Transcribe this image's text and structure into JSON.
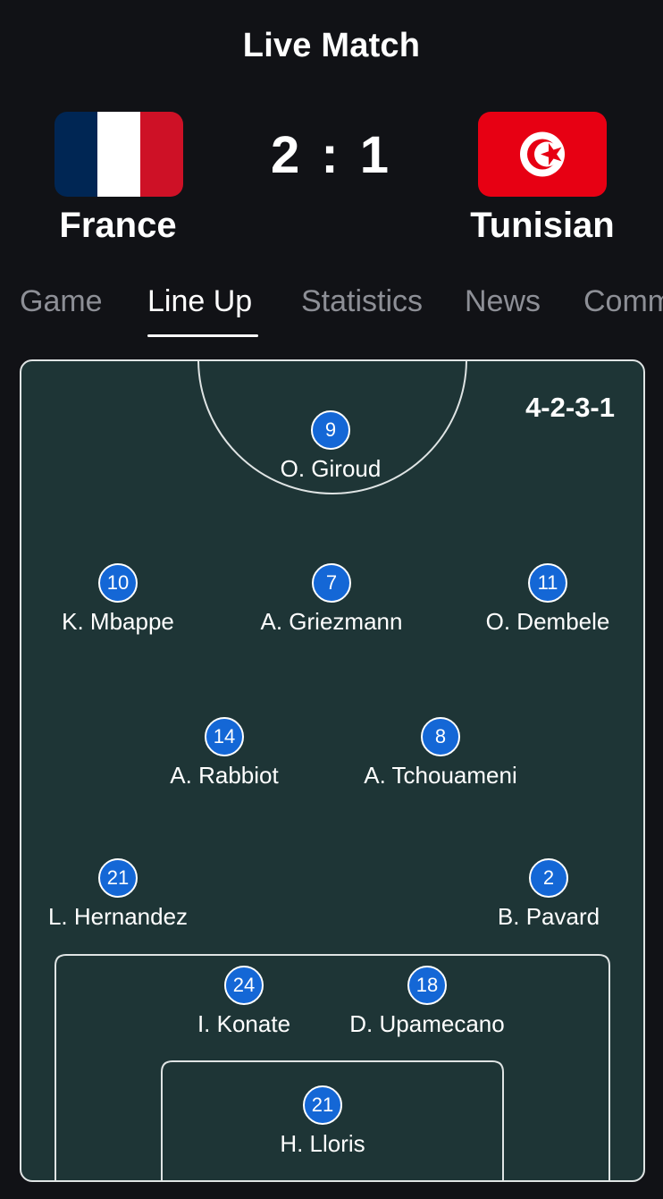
{
  "header": {
    "title": "Live Match"
  },
  "match": {
    "home": {
      "name": "France",
      "flag": "france-flag",
      "colors": [
        "#002654",
        "#ffffff",
        "#ce1126"
      ]
    },
    "away": {
      "name": "Tunisian",
      "flag": "tunisia-flag",
      "colors": [
        "#e70013",
        "#ffffff"
      ]
    },
    "score": "2 : 1"
  },
  "tabs": [
    {
      "label": "Game",
      "active": false
    },
    {
      "label": "Line Up",
      "active": true
    },
    {
      "label": "Statistics",
      "active": false
    },
    {
      "label": "News",
      "active": false
    },
    {
      "label": "Comm",
      "active": false
    }
  ],
  "lineup": {
    "formation": "4-2-3-1",
    "players": [
      {
        "number": "9",
        "name": "O. Giroud"
      },
      {
        "number": "10",
        "name": "K. Mbappe"
      },
      {
        "number": "7",
        "name": "A. Griezmann"
      },
      {
        "number": "11",
        "name": "O. Dembele"
      },
      {
        "number": "14",
        "name": "A. Rabbiot"
      },
      {
        "number": "8",
        "name": "A. Tchouameni"
      },
      {
        "number": "21",
        "name": "L. Hernandez"
      },
      {
        "number": "2",
        "name": "B. Pavard"
      },
      {
        "number": "24",
        "name": "I. Konate"
      },
      {
        "number": "18",
        "name": "D. Upamecano"
      },
      {
        "number": "21",
        "name": "H. Lloris"
      }
    ]
  },
  "colors": {
    "background": "#111216",
    "pitch": "#1e3536",
    "badge": "#1467d6",
    "inactive_tab": "#8d8f96"
  }
}
